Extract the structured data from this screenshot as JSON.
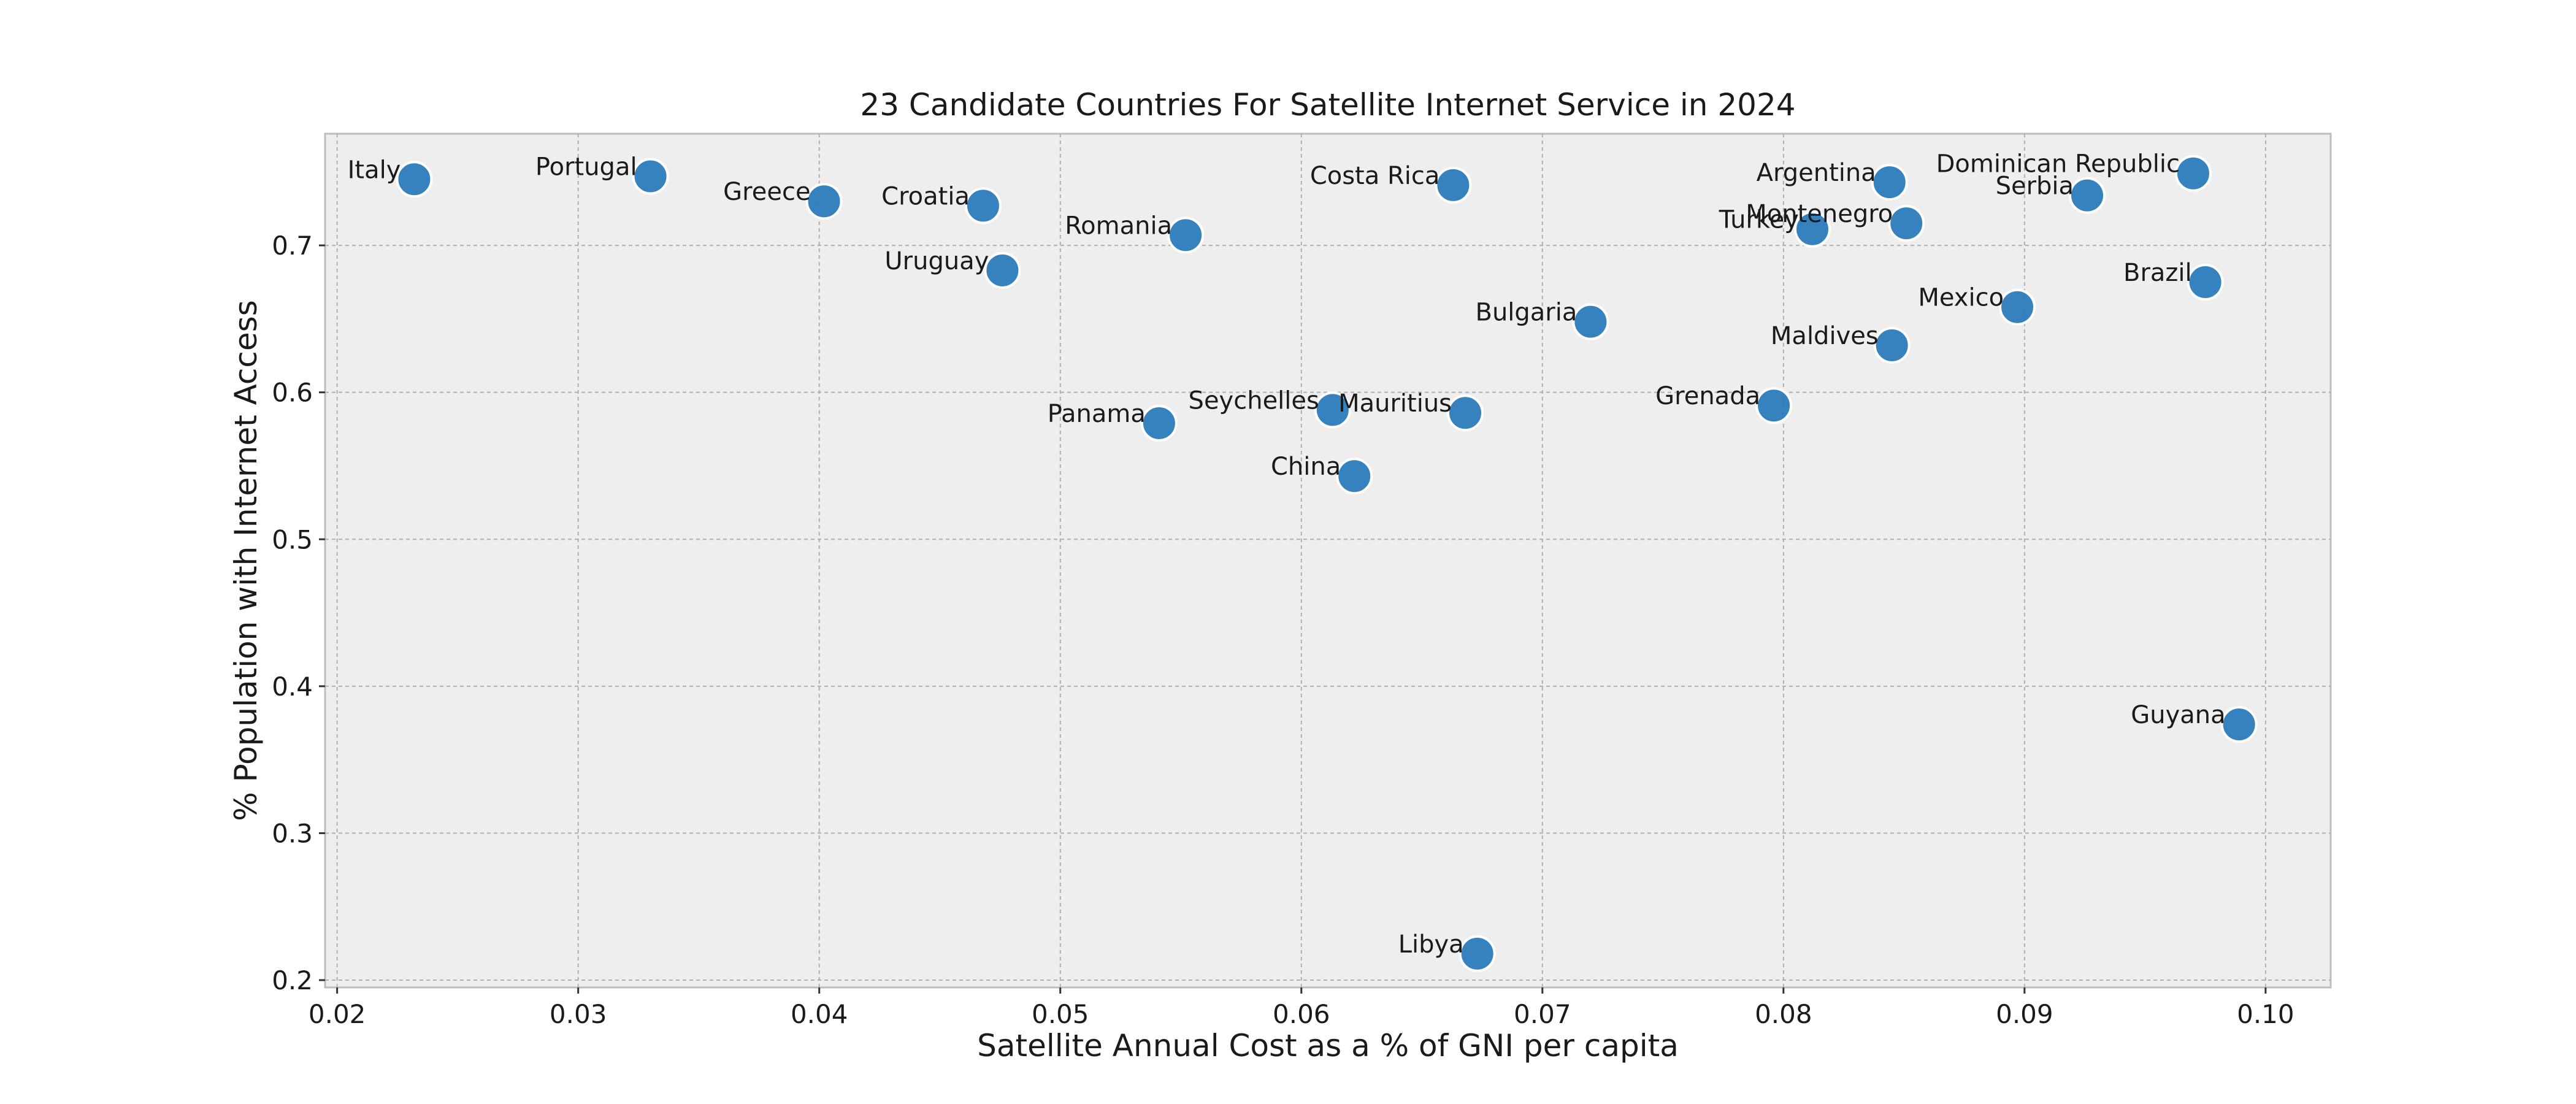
{
  "chart_data": {
    "type": "scatter",
    "title": "23 Candidate Countries For Satellite Internet Service in 2024",
    "xlabel": "Satellite Annual Cost as a % of GNI per capita",
    "ylabel": "% Population with Internet Access",
    "xlim": [
      0.0195,
      0.1027
    ],
    "ylim": [
      0.195,
      0.776
    ],
    "xticks": [
      "0.02",
      "0.03",
      "0.04",
      "0.05",
      "0.06",
      "0.07",
      "0.08",
      "0.09",
      "0.10"
    ],
    "yticks": [
      "0.2",
      "0.3",
      "0.4",
      "0.5",
      "0.6",
      "0.7"
    ],
    "grid": true,
    "marker_color": "#2b7bba",
    "points": [
      {
        "label": "Italy",
        "x": 0.0232,
        "y": 0.745
      },
      {
        "label": "Portugal",
        "x": 0.033,
        "y": 0.747
      },
      {
        "label": "Greece",
        "x": 0.0402,
        "y": 0.73
      },
      {
        "label": "Croatia",
        "x": 0.0468,
        "y": 0.727
      },
      {
        "label": "Uruguay",
        "x": 0.0476,
        "y": 0.683
      },
      {
        "label": "Romania",
        "x": 0.0552,
        "y": 0.707
      },
      {
        "label": "Panama",
        "x": 0.0541,
        "y": 0.579
      },
      {
        "label": "Seychelles",
        "x": 0.0613,
        "y": 0.588
      },
      {
        "label": "China",
        "x": 0.0622,
        "y": 0.543
      },
      {
        "label": "Costa Rica",
        "x": 0.0663,
        "y": 0.741
      },
      {
        "label": "Mauritius",
        "x": 0.0668,
        "y": 0.586
      },
      {
        "label": "Libya",
        "x": 0.0673,
        "y": 0.218
      },
      {
        "label": "Bulgaria",
        "x": 0.072,
        "y": 0.648
      },
      {
        "label": "Grenada",
        "x": 0.0796,
        "y": 0.591
      },
      {
        "label": "Turkey",
        "x": 0.0812,
        "y": 0.711
      },
      {
        "label": "Argentina",
        "x": 0.0844,
        "y": 0.743
      },
      {
        "label": "Maldives",
        "x": 0.0845,
        "y": 0.632
      },
      {
        "label": "Montenegro",
        "x": 0.0851,
        "y": 0.715
      },
      {
        "label": "Mexico",
        "x": 0.0897,
        "y": 0.658
      },
      {
        "label": "Serbia",
        "x": 0.0926,
        "y": 0.734
      },
      {
        "label": "Dominican Republic",
        "x": 0.097,
        "y": 0.749
      },
      {
        "label": "Brazil",
        "x": 0.0975,
        "y": 0.675
      },
      {
        "label": "Guyana",
        "x": 0.0989,
        "y": 0.374
      }
    ]
  }
}
